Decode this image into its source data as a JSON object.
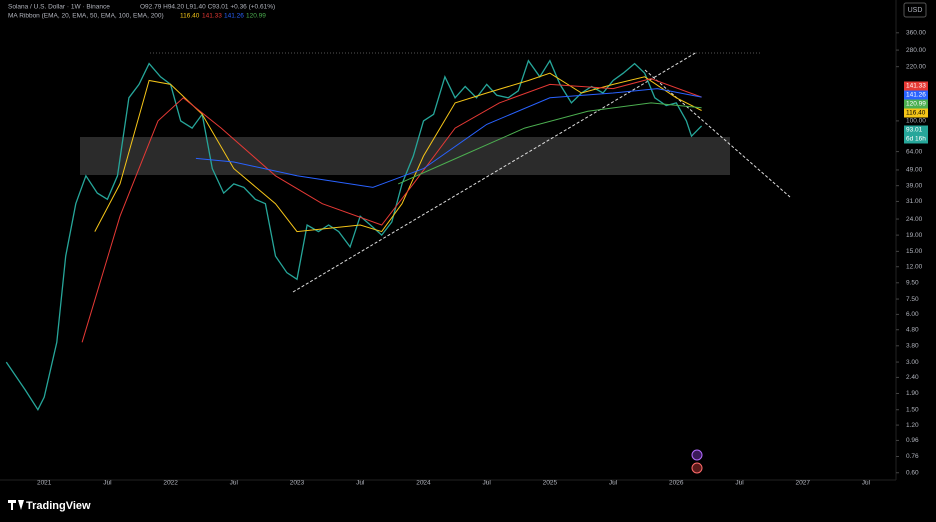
{
  "chart_data": {
    "type": "line",
    "title": "Solana / U.S. Dollar · 1W · Binance",
    "ohlc_label": "O92.79 H94.20 L91.40 C93.01 +0.36 (+0.61%)",
    "indicator_label": "MA Ribbon (EMA, 20, EMA, 50, EMA, 100, EMA, 200)",
    "indicator_values": [
      {
        "label": "116.40",
        "color": "#f5c518"
      },
      {
        "label": "141.33",
        "color": "#e53935"
      },
      {
        "label": "141.26",
        "color": "#2962ff"
      },
      {
        "label": "120.99",
        "color": "#4caf50"
      }
    ],
    "currency_button": "USD",
    "price_badges": [
      {
        "label": "141.33",
        "color": "#e53935"
      },
      {
        "label": "141.26",
        "color": "#2962ff"
      },
      {
        "label": "120.99",
        "color": "#4caf50"
      },
      {
        "label": "116.40",
        "color": "#f5c518"
      },
      {
        "label": "93.01",
        "color": "#26a69a"
      },
      {
        "label": "6d 16h",
        "color": "#26a69a"
      }
    ],
    "log_scale": true,
    "xlim": [
      2020.69,
      2027.73
    ],
    "ylim": [
      0.54,
      580
    ],
    "xticks": [
      2021,
      {
        "value": 2021.5,
        "label": "Jul"
      },
      2022,
      {
        "value": 2022.5,
        "label": "Jul"
      },
      2023,
      {
        "value": 2023.5,
        "label": "Jul"
      },
      2024,
      {
        "value": 2024.5,
        "label": "Jul"
      },
      2025,
      {
        "value": 2025.5,
        "label": "Jul"
      },
      2026,
      {
        "value": 2026.5,
        "label": "Jul"
      },
      2027,
      {
        "value": 2027.5,
        "label": "Jul"
      }
    ],
    "yticks": [
      {
        "value": 360,
        "label": "360.00"
      },
      {
        "value": 280,
        "label": "280.00"
      },
      {
        "value": 220,
        "label": "220.00"
      },
      {
        "value": 100,
        "label": "100.00"
      },
      {
        "value": 64,
        "label": "64.00"
      },
      {
        "value": 49,
        "label": "49.00"
      },
      {
        "value": 39,
        "label": "39.00"
      },
      {
        "value": 31,
        "label": "31.00"
      },
      {
        "value": 24,
        "label": "24.00"
      },
      {
        "value": 19,
        "label": "19.00"
      },
      {
        "value": 15,
        "label": "15.00"
      },
      {
        "value": 12,
        "label": "12.00"
      },
      {
        "value": 9.5,
        "label": "9.50"
      },
      {
        "value": 7.5,
        "label": "7.50"
      },
      {
        "value": 6,
        "label": "6.00"
      },
      {
        "value": 4.8,
        "label": "4.80"
      },
      {
        "value": 3.8,
        "label": "3.80"
      },
      {
        "value": 3,
        "label": "3.00"
      },
      {
        "value": 2.4,
        "label": "2.40"
      },
      {
        "value": 1.9,
        "label": "1.90"
      },
      {
        "value": 1.5,
        "label": "1.50"
      },
      {
        "value": 1.2,
        "label": "1.20"
      },
      {
        "value": 0.96,
        "label": "0.96"
      },
      {
        "value": 0.76,
        "label": "0.76"
      },
      {
        "value": 0.6,
        "label": "0.60"
      }
    ],
    "series": [
      {
        "color": "#26a69a",
        "x": [
          2020.7,
          2020.85,
          2020.95,
          2021.0,
          2021.1,
          2021.17,
          2021.25,
          2021.33,
          2021.42,
          2021.5,
          2021.58,
          2021.67,
          2021.75,
          2021.83,
          2021.92,
          2022.0,
          2022.08,
          2022.17,
          2022.25,
          2022.33,
          2022.42,
          2022.5,
          2022.58,
          2022.67,
          2022.75,
          2022.83,
          2022.92,
          2023.0,
          2023.08,
          2023.17,
          2023.25,
          2023.33,
          2023.42,
          2023.5,
          2023.58,
          2023.67,
          2023.75,
          2023.83,
          2023.92,
          2024.0,
          2024.08,
          2024.17,
          2024.25,
          2024.33,
          2024.42,
          2024.5,
          2024.58,
          2024.67,
          2024.75,
          2024.83,
          2024.92,
          2025.0,
          2025.08,
          2025.17,
          2025.25,
          2025.33,
          2025.42,
          2025.5,
          2025.58,
          2025.67,
          2025.75,
          2025.83,
          2025.92,
          2026.0,
          2026.08,
          2026.12,
          2026.2
        ],
        "values": [
          3.0,
          2.0,
          1.5,
          1.8,
          4,
          14,
          30,
          45,
          35,
          32,
          45,
          140,
          170,
          230,
          190,
          170,
          100,
          90,
          110,
          50,
          35,
          40,
          38,
          32,
          30,
          14,
          11,
          10,
          22,
          20,
          22,
          20,
          16,
          25,
          22,
          19,
          23,
          40,
          60,
          100,
          110,
          190,
          140,
          165,
          140,
          170,
          145,
          140,
          155,
          240,
          190,
          240,
          170,
          130,
          150,
          165,
          150,
          180,
          200,
          230,
          200,
          140,
          125,
          130,
          100,
          80,
          93
        ]
      },
      {
        "color": "#f5c518",
        "x": [
          2021.4,
          2021.6,
          2021.83,
          2022.0,
          2022.25,
          2022.5,
          2022.83,
          2023.0,
          2023.5,
          2023.67,
          2023.83,
          2024.0,
          2024.25,
          2024.5,
          2024.83,
          2025.0,
          2025.25,
          2025.5,
          2025.75,
          2026.0,
          2026.2
        ],
        "values": [
          20,
          40,
          180,
          170,
          110,
          50,
          30,
          20,
          22,
          20,
          30,
          60,
          130,
          150,
          180,
          200,
          150,
          170,
          190,
          140,
          116.4
        ]
      },
      {
        "color": "#e53935",
        "x": [
          2021.3,
          2021.6,
          2021.9,
          2022.1,
          2022.4,
          2022.83,
          2023.2,
          2023.67,
          2023.92,
          2024.25,
          2024.6,
          2025.0,
          2025.5,
          2025.8,
          2026.2
        ],
        "values": [
          4,
          25,
          100,
          140,
          90,
          45,
          30,
          22,
          40,
          90,
          130,
          170,
          160,
          185,
          141.33
        ]
      },
      {
        "color": "#2962ff",
        "x": [
          2022.2,
          2022.5,
          2023.0,
          2023.6,
          2024.0,
          2024.5,
          2025.0,
          2025.5,
          2025.85,
          2026.2
        ],
        "values": [
          58,
          55,
          45,
          38,
          50,
          95,
          140,
          150,
          160,
          141.26
        ]
      },
      {
        "color": "#4caf50",
        "x": [
          2023.8,
          2024.3,
          2024.8,
          2025.3,
          2025.8,
          2026.2
        ],
        "values": [
          40,
          60,
          90,
          115,
          130,
          120.99
        ]
      }
    ],
    "brand": "TradingView"
  }
}
